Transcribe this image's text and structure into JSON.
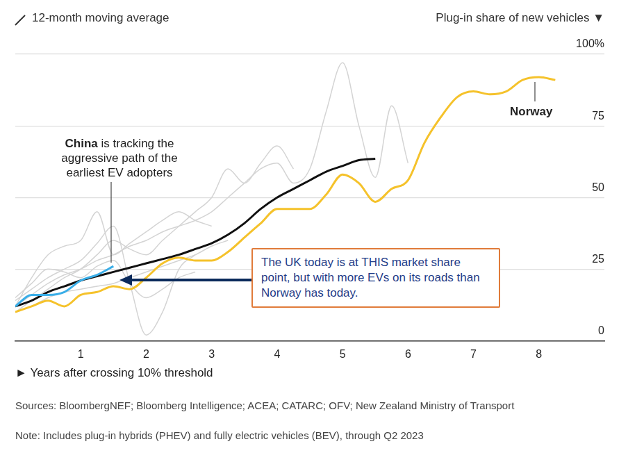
{
  "chart_data": {
    "type": "line",
    "title": "12-month moving average",
    "y_label": "Plug-in share of new vehicles ▼",
    "x_label": "► Years after crossing 10% threshold",
    "x": [
      0,
      0.25,
      0.5,
      0.75,
      1,
      1.25,
      1.5,
      1.75,
      2,
      2.25,
      2.5,
      2.75,
      3,
      3.25,
      3.5,
      3.75,
      4,
      4.25,
      4.5,
      4.75,
      5,
      5.25,
      5.5,
      5.75,
      6,
      6.25,
      6.5,
      6.75,
      7,
      7.25,
      7.5,
      7.75,
      8,
      8.25
    ],
    "series": [
      {
        "name": "China",
        "color": "#3aaee8",
        "values": [
          12,
          16,
          16,
          17,
          21,
          23,
          26,
          null,
          null,
          null,
          null,
          null,
          null,
          null,
          null,
          null,
          null,
          null,
          null,
          null,
          null,
          null,
          null,
          null,
          null,
          null,
          null,
          null,
          null,
          null,
          null,
          null,
          null,
          null
        ]
      },
      {
        "color": "#111111",
        "values": [
          12,
          14,
          17,
          19,
          21,
          22.5,
          24,
          25.5,
          27,
          28.5,
          30,
          32,
          34,
          37,
          41,
          46,
          50,
          53,
          56,
          59,
          61,
          63,
          63.5,
          null,
          null,
          null,
          null,
          null,
          null,
          null,
          null,
          null,
          null,
          null
        ]
      },
      {
        "name": "Norway",
        "color": "#f5c22b",
        "values": [
          10,
          12,
          14,
          12,
          16,
          17,
          19,
          18,
          22,
          27,
          29,
          28,
          28,
          31,
          36,
          41,
          46,
          46,
          46,
          51,
          58,
          55,
          48.5,
          53,
          56,
          69,
          78,
          85,
          87,
          86,
          87,
          91,
          92,
          91
        ]
      },
      {
        "color": "#d4d4d4",
        "values": [
          12,
          16,
          20,
          23,
          25,
          28,
          30,
          33,
          35,
          38,
          40,
          42,
          45,
          50,
          55,
          60,
          62,
          55,
          60,
          80,
          97,
          75,
          57,
          82,
          62,
          null,
          null,
          null,
          null,
          null,
          null,
          null,
          null,
          null
        ]
      },
      {
        "color": "#d4d4d4",
        "values": [
          10,
          14,
          18,
          22,
          25,
          30,
          35,
          32,
          30,
          35,
          40,
          45,
          50,
          60,
          55,
          62,
          68,
          60,
          null,
          null,
          null,
          null,
          null,
          null,
          null,
          null,
          null,
          null,
          null,
          null,
          null,
          null,
          null,
          null
        ]
      },
      {
        "color": "#d4d4d4",
        "values": [
          14,
          18,
          22,
          25,
          28,
          34,
          40,
          20,
          2,
          10,
          25,
          30,
          null,
          null,
          null,
          null,
          null,
          null,
          null,
          null,
          null,
          null,
          null,
          null,
          null,
          null,
          null,
          null,
          null,
          null,
          null,
          null,
          null,
          null
        ]
      },
      {
        "color": "#d4d4d4",
        "values": [
          12,
          22,
          30,
          33,
          35,
          45,
          30,
          34,
          38,
          42,
          45,
          42,
          40,
          null,
          null,
          null,
          null,
          null,
          null,
          null,
          null,
          null,
          null,
          null,
          null,
          null,
          null,
          null,
          null,
          null,
          null,
          null,
          null,
          null
        ]
      },
      {
        "color": "#d4d4d4",
        "values": [
          10,
          12,
          15,
          17,
          18,
          19,
          20,
          22,
          24,
          26,
          28,
          30,
          33,
          35,
          null,
          null,
          null,
          null,
          null,
          null,
          null,
          null,
          null,
          null,
          null,
          null,
          null,
          null,
          null,
          null,
          null,
          null,
          null,
          null
        ]
      },
      {
        "color": "#d4d4d4",
        "values": [
          15,
          20,
          25,
          24,
          22,
          26,
          28,
          20,
          15,
          18,
          22,
          24,
          null,
          null,
          null,
          null,
          null,
          null,
          null,
          null,
          null,
          null,
          null,
          null,
          null,
          null,
          null,
          null,
          null,
          null,
          null,
          null,
          null,
          null
        ]
      }
    ],
    "xlim": [
      0,
      9
    ],
    "xticks": [
      1,
      2,
      3,
      4,
      5,
      6,
      7,
      8
    ],
    "ylim": [
      0,
      100
    ],
    "yticks": [
      0,
      25,
      50,
      75,
      {
        "value": 100,
        "label": "100%"
      }
    ],
    "grid": true,
    "annotations": [
      {
        "label": "China",
        "text": "is tracking the aggressive path of the earliest EV adopters"
      },
      {
        "label": "Norway"
      },
      {
        "text": "The UK today is at THIS market share point, but with more EVs on its roads than Norway has today."
      }
    ],
    "sources": "Sources: BloombergNEF; Bloomberg Intelligence; ACEA; CATARC; OFV; New Zealand Ministry of Transport",
    "note": "Note: Includes plug-in hybrids (PHEV) and fully electric vehicles (BEV), through Q2 2023"
  }
}
